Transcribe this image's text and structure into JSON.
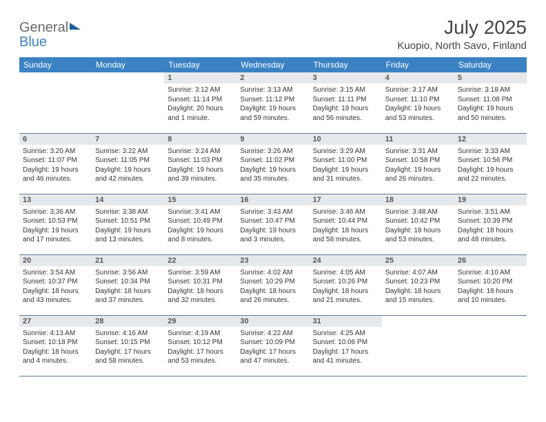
{
  "logo": {
    "word1": "General",
    "word2": "Blue"
  },
  "title": "July 2025",
  "location": "Kuopio, North Savo, Finland",
  "weekdays": [
    "Sunday",
    "Monday",
    "Tuesday",
    "Wednesday",
    "Thursday",
    "Friday",
    "Saturday"
  ],
  "colors": {
    "header_bg": "#3b82c4",
    "header_text": "#ffffff",
    "dayhdr_bg": "#e6e9ec",
    "border": "#5a7a9a",
    "logo_gray": "#6a6a6a",
    "logo_blue": "#3b82c4"
  },
  "weeks": [
    [
      {
        "n": "",
        "sunrise": "",
        "sunset": "",
        "daylight": ""
      },
      {
        "n": "",
        "sunrise": "",
        "sunset": "",
        "daylight": ""
      },
      {
        "n": "1",
        "sunrise": "Sunrise: 3:12 AM",
        "sunset": "Sunset: 11:14 PM",
        "daylight": "Daylight: 20 hours and 1 minute."
      },
      {
        "n": "2",
        "sunrise": "Sunrise: 3:13 AM",
        "sunset": "Sunset: 11:12 PM",
        "daylight": "Daylight: 19 hours and 59 minutes."
      },
      {
        "n": "3",
        "sunrise": "Sunrise: 3:15 AM",
        "sunset": "Sunset: 11:11 PM",
        "daylight": "Daylight: 19 hours and 56 minutes."
      },
      {
        "n": "4",
        "sunrise": "Sunrise: 3:17 AM",
        "sunset": "Sunset: 11:10 PM",
        "daylight": "Daylight: 19 hours and 53 minutes."
      },
      {
        "n": "5",
        "sunrise": "Sunrise: 3:18 AM",
        "sunset": "Sunset: 11:08 PM",
        "daylight": "Daylight: 19 hours and 50 minutes."
      }
    ],
    [
      {
        "n": "6",
        "sunrise": "Sunrise: 3:20 AM",
        "sunset": "Sunset: 11:07 PM",
        "daylight": "Daylight: 19 hours and 46 minutes."
      },
      {
        "n": "7",
        "sunrise": "Sunrise: 3:22 AM",
        "sunset": "Sunset: 11:05 PM",
        "daylight": "Daylight: 19 hours and 42 minutes."
      },
      {
        "n": "8",
        "sunrise": "Sunrise: 3:24 AM",
        "sunset": "Sunset: 11:03 PM",
        "daylight": "Daylight: 19 hours and 39 minutes."
      },
      {
        "n": "9",
        "sunrise": "Sunrise: 3:26 AM",
        "sunset": "Sunset: 11:02 PM",
        "daylight": "Daylight: 19 hours and 35 minutes."
      },
      {
        "n": "10",
        "sunrise": "Sunrise: 3:29 AM",
        "sunset": "Sunset: 11:00 PM",
        "daylight": "Daylight: 19 hours and 31 minutes."
      },
      {
        "n": "11",
        "sunrise": "Sunrise: 3:31 AM",
        "sunset": "Sunset: 10:58 PM",
        "daylight": "Daylight: 19 hours and 26 minutes."
      },
      {
        "n": "12",
        "sunrise": "Sunrise: 3:33 AM",
        "sunset": "Sunset: 10:56 PM",
        "daylight": "Daylight: 19 hours and 22 minutes."
      }
    ],
    [
      {
        "n": "13",
        "sunrise": "Sunrise: 3:36 AM",
        "sunset": "Sunset: 10:53 PM",
        "daylight": "Daylight: 19 hours and 17 minutes."
      },
      {
        "n": "14",
        "sunrise": "Sunrise: 3:38 AM",
        "sunset": "Sunset: 10:51 PM",
        "daylight": "Daylight: 19 hours and 13 minutes."
      },
      {
        "n": "15",
        "sunrise": "Sunrise: 3:41 AM",
        "sunset": "Sunset: 10:49 PM",
        "daylight": "Daylight: 19 hours and 8 minutes."
      },
      {
        "n": "16",
        "sunrise": "Sunrise: 3:43 AM",
        "sunset": "Sunset: 10:47 PM",
        "daylight": "Daylight: 19 hours and 3 minutes."
      },
      {
        "n": "17",
        "sunrise": "Sunrise: 3:46 AM",
        "sunset": "Sunset: 10:44 PM",
        "daylight": "Daylight: 18 hours and 58 minutes."
      },
      {
        "n": "18",
        "sunrise": "Sunrise: 3:48 AM",
        "sunset": "Sunset: 10:42 PM",
        "daylight": "Daylight: 18 hours and 53 minutes."
      },
      {
        "n": "19",
        "sunrise": "Sunrise: 3:51 AM",
        "sunset": "Sunset: 10:39 PM",
        "daylight": "Daylight: 18 hours and 48 minutes."
      }
    ],
    [
      {
        "n": "20",
        "sunrise": "Sunrise: 3:54 AM",
        "sunset": "Sunset: 10:37 PM",
        "daylight": "Daylight: 18 hours and 43 minutes."
      },
      {
        "n": "21",
        "sunrise": "Sunrise: 3:56 AM",
        "sunset": "Sunset: 10:34 PM",
        "daylight": "Daylight: 18 hours and 37 minutes."
      },
      {
        "n": "22",
        "sunrise": "Sunrise: 3:59 AM",
        "sunset": "Sunset: 10:31 PM",
        "daylight": "Daylight: 18 hours and 32 minutes."
      },
      {
        "n": "23",
        "sunrise": "Sunrise: 4:02 AM",
        "sunset": "Sunset: 10:29 PM",
        "daylight": "Daylight: 18 hours and 26 minutes."
      },
      {
        "n": "24",
        "sunrise": "Sunrise: 4:05 AM",
        "sunset": "Sunset: 10:26 PM",
        "daylight": "Daylight: 18 hours and 21 minutes."
      },
      {
        "n": "25",
        "sunrise": "Sunrise: 4:07 AM",
        "sunset": "Sunset: 10:23 PM",
        "daylight": "Daylight: 18 hours and 15 minutes."
      },
      {
        "n": "26",
        "sunrise": "Sunrise: 4:10 AM",
        "sunset": "Sunset: 10:20 PM",
        "daylight": "Daylight: 18 hours and 10 minutes."
      }
    ],
    [
      {
        "n": "27",
        "sunrise": "Sunrise: 4:13 AM",
        "sunset": "Sunset: 10:18 PM",
        "daylight": "Daylight: 18 hours and 4 minutes."
      },
      {
        "n": "28",
        "sunrise": "Sunrise: 4:16 AM",
        "sunset": "Sunset: 10:15 PM",
        "daylight": "Daylight: 17 hours and 58 minutes."
      },
      {
        "n": "29",
        "sunrise": "Sunrise: 4:19 AM",
        "sunset": "Sunset: 10:12 PM",
        "daylight": "Daylight: 17 hours and 53 minutes."
      },
      {
        "n": "30",
        "sunrise": "Sunrise: 4:22 AM",
        "sunset": "Sunset: 10:09 PM",
        "daylight": "Daylight: 17 hours and 47 minutes."
      },
      {
        "n": "31",
        "sunrise": "Sunrise: 4:25 AM",
        "sunset": "Sunset: 10:06 PM",
        "daylight": "Daylight: 17 hours and 41 minutes."
      },
      {
        "n": "",
        "sunrise": "",
        "sunset": "",
        "daylight": ""
      },
      {
        "n": "",
        "sunrise": "",
        "sunset": "",
        "daylight": ""
      }
    ]
  ]
}
